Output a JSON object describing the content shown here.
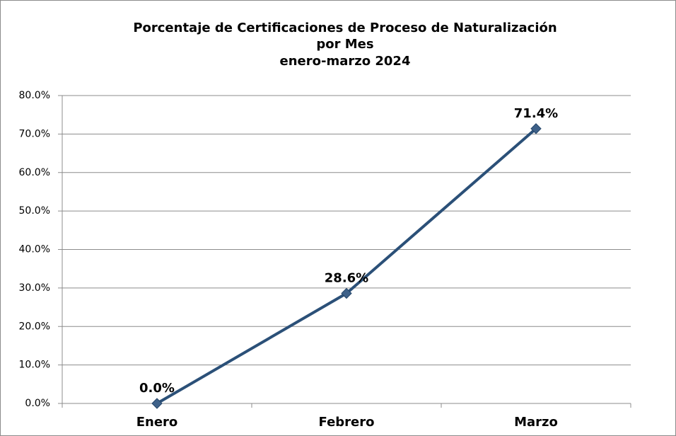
{
  "chart_data": {
    "type": "line",
    "title": [
      "Porcentaje de Certificaciones de Proceso de Naturalización",
      "por Mes"
    ],
    "subtitle": "enero-marzo 2024",
    "categories": [
      "Enero",
      "Febrero",
      "Marzo"
    ],
    "values": [
      0,
      28.6,
      71.4
    ],
    "value_labels": [
      "0.0%",
      "28.6%",
      "71.4%"
    ],
    "color": "#2b5078",
    "ylim": [
      0,
      80
    ],
    "yticks": [
      {
        "value": 0,
        "label": "0.0%"
      },
      {
        "value": 10,
        "label": "10.0%"
      },
      {
        "value": 20,
        "label": "20.0%"
      },
      {
        "value": 30,
        "label": "30.0%"
      },
      {
        "value": 40,
        "label": "40.0%"
      },
      {
        "value": 50,
        "label": "50.0%"
      },
      {
        "value": 60,
        "label": "60.0%"
      },
      {
        "value": 70,
        "label": "70.0%"
      },
      {
        "value": 80,
        "label": "80.0%"
      }
    ],
    "grid": true
  }
}
